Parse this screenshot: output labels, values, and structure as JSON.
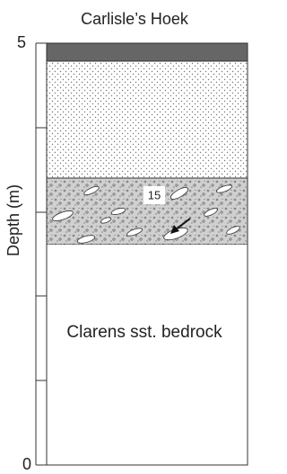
{
  "title": "Carlisle’s Hoek",
  "axis": {
    "label": "Depth (m)",
    "top_label": "5",
    "bottom_label": "0"
  },
  "layers": {
    "conglomerate_label": "15",
    "bedrock_label": "Clarens sst. bedrock"
  }
}
